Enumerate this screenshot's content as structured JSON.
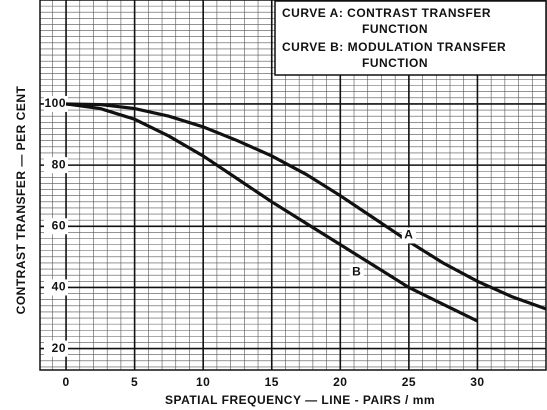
{
  "chart_data": {
    "type": "line",
    "x_label": "SPATIAL FREQUENCY — LINE - PAIRS / mm",
    "y_label": "CONTRAST TRANSFER — PER CENT",
    "x": [
      0,
      2.5,
      5,
      7.5,
      10,
      12.5,
      15,
      17.5,
      20,
      22.5,
      25,
      27.5,
      30,
      32.5,
      35
    ],
    "series": [
      {
        "name": "CURVE A: CONTRAST TRANSFER FUNCTION",
        "color": "#111111",
        "values": [
          100,
          99.8,
          98.5,
          96,
          92.5,
          88,
          83,
          77,
          70,
          62.5,
          55,
          48,
          42,
          37,
          33
        ]
      },
      {
        "name": "CURVE B: MODULATION TRANSFER FUNCTION",
        "color": "#111111",
        "values": [
          100,
          98.5,
          95,
          89.5,
          83,
          75.5,
          68,
          61,
          54,
          47,
          40,
          34.5,
          29,
          null,
          null
        ]
      }
    ],
    "annotations": [
      {
        "text": "A",
        "x": 25,
        "y": 57
      },
      {
        "text": "B",
        "x": 21.2,
        "y": 45
      }
    ],
    "xlim": [
      -1.9,
      35
    ],
    "ylim": [
      13,
      134
    ],
    "xticks": [
      0,
      5,
      10,
      15,
      20,
      25,
      30
    ],
    "yticks": [
      20,
      40,
      60,
      80,
      100
    ],
    "grid": true,
    "minor_grid": {
      "x": 1,
      "y": 2
    },
    "legend": "upper right"
  }
}
